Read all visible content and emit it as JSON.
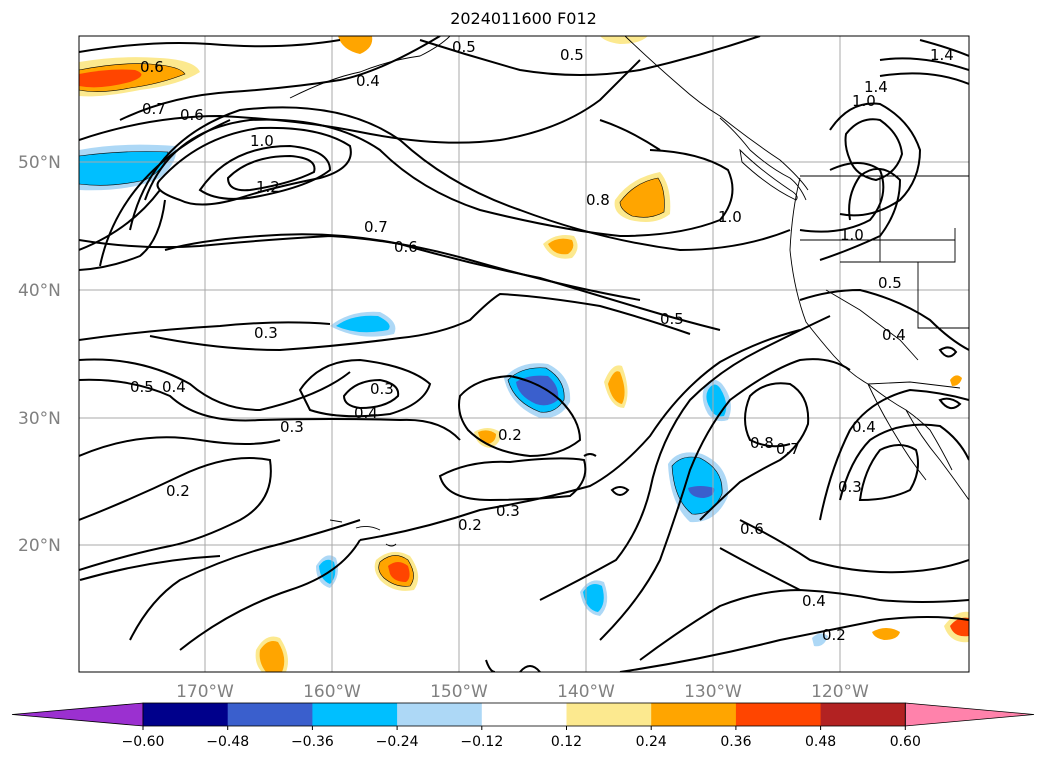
{
  "title": "2024011600 F012",
  "lat_labels": [
    "50°N",
    "40°N",
    "30°N",
    "20°N"
  ],
  "lon_labels": [
    "170°W",
    "160°W",
    "150°W",
    "140°W",
    "130°W",
    "120°W"
  ],
  "contour_labels": [
    "0.6",
    "0.7",
    "0.6",
    "1.0",
    "1.2",
    "0.4",
    "0.5",
    "0.5",
    "0.8",
    "1.0",
    "1.4",
    "1.0",
    "1.4",
    "0.7",
    "0.6",
    "1.0",
    "0.5",
    "0.3",
    "0.5",
    "0.4",
    "0.5",
    "0.4",
    "0.3",
    "0.2",
    "0.2",
    "0.3",
    "0.2",
    "0.8",
    "0.7",
    "0.4",
    "0.3",
    "0.4",
    "0.6",
    "0.4",
    "0.2",
    "0.3"
  ],
  "colorbar": {
    "ticks": [
      "−0.60",
      "−0.48",
      "−0.36",
      "−0.24",
      "−0.12",
      "0.12",
      "0.24",
      "0.36",
      "0.48",
      "0.60"
    ],
    "colors": [
      "#9b30d0",
      "#00008b",
      "#3a5fcd",
      "#00bfff",
      "#add8f6",
      "#ffffff",
      "#fce98f",
      "#ffa500",
      "#ff4500",
      "#b22222",
      "#ff82ab"
    ]
  }
}
